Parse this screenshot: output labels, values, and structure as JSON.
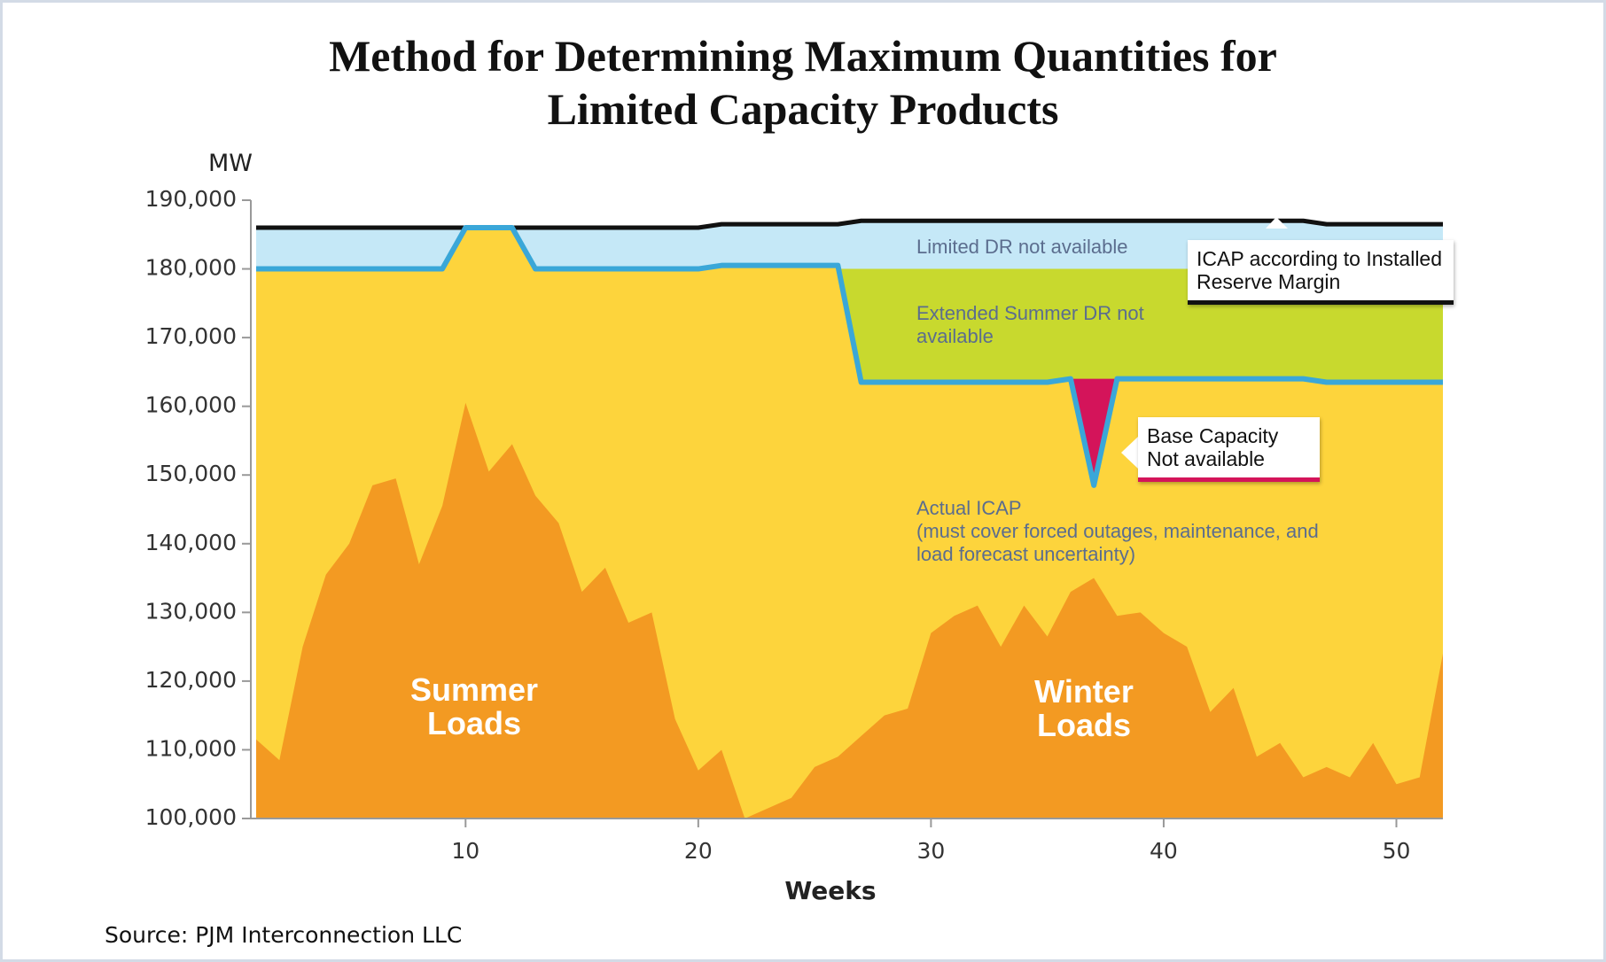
{
  "chart_data": {
    "type": "area",
    "title": "Method for Determining Maximum Quantities for Limited Capacity Products",
    "y_label": "MW",
    "x_label": "Weeks",
    "source": "Source: PJM Interconnection LLC",
    "x": [
      1,
      2,
      3,
      4,
      5,
      6,
      7,
      8,
      9,
      10,
      11,
      12,
      13,
      14,
      15,
      16,
      17,
      18,
      19,
      20,
      21,
      22,
      23,
      24,
      25,
      26,
      27,
      28,
      29,
      30,
      31,
      32,
      33,
      34,
      35,
      36,
      37,
      38,
      39,
      40,
      41,
      42,
      43,
      44,
      45,
      46,
      47,
      48,
      49,
      50,
      51,
      52
    ],
    "xlim": [
      1,
      52
    ],
    "xticks": [
      10,
      20,
      30,
      40,
      50
    ],
    "ylim": [
      100000,
      190000
    ],
    "yticks": [
      {
        "value": 100000,
        "label": "100,000"
      },
      {
        "value": 110000,
        "label": "110,000"
      },
      {
        "value": 120000,
        "label": "120,000"
      },
      {
        "value": 130000,
        "label": "130,000"
      },
      {
        "value": 140000,
        "label": "140,000"
      },
      {
        "value": 150000,
        "label": "150,000"
      },
      {
        "value": 160000,
        "label": "160,000"
      },
      {
        "value": 170000,
        "label": "170,000"
      },
      {
        "value": 180000,
        "label": "180,000"
      },
      {
        "value": 190000,
        "label": "190,000"
      }
    ],
    "series": [
      {
        "name": "ICAP according to Installed Reserve Margin",
        "color": "#c5e8f7",
        "line_color": "#111111",
        "values": [
          186000,
          186000,
          186000,
          186000,
          186000,
          186000,
          186000,
          186000,
          186000,
          186000,
          186000,
          186000,
          186000,
          186000,
          186000,
          186000,
          186000,
          186000,
          186000,
          186000,
          186500,
          186500,
          186500,
          186500,
          186500,
          186500,
          187000,
          187000,
          187000,
          187000,
          187000,
          187000,
          187000,
          187000,
          187000,
          187000,
          187000,
          187000,
          187000,
          187000,
          187000,
          187000,
          187000,
          187000,
          187000,
          187000,
          186500,
          186500,
          186500,
          186500,
          186500,
          186500
        ]
      },
      {
        "name": "Extended Summer DR not available",
        "color": "#c8d92e",
        "values": [
          null,
          null,
          null,
          null,
          null,
          null,
          null,
          null,
          null,
          null,
          null,
          null,
          null,
          null,
          null,
          null,
          null,
          null,
          null,
          null,
          null,
          null,
          null,
          null,
          null,
          180000,
          180000,
          180000,
          180000,
          180000,
          180000,
          180000,
          180000,
          180000,
          180000,
          180000,
          180000,
          180000,
          180000,
          180000,
          180000,
          180000,
          180000,
          180000,
          180000,
          180000,
          180000,
          180000,
          180000,
          180000,
          180000,
          180000
        ]
      },
      {
        "name": "Base Capacity Not available",
        "color": "#d4145a",
        "values": [
          null,
          null,
          null,
          null,
          null,
          null,
          null,
          null,
          null,
          null,
          null,
          null,
          null,
          null,
          null,
          null,
          null,
          null,
          null,
          null,
          null,
          null,
          null,
          null,
          null,
          null,
          null,
          null,
          null,
          null,
          null,
          null,
          null,
          null,
          null,
          164000,
          164000,
          164000,
          null,
          null,
          null,
          null,
          null,
          null,
          null,
          null,
          null,
          null,
          null,
          null,
          null,
          null
        ]
      },
      {
        "name": "Actual ICAP",
        "color": "#fdd43c",
        "line_color": "#3aa7d8",
        "values": [
          180000,
          180000,
          180000,
          180000,
          180000,
          180000,
          180000,
          180000,
          180000,
          186000,
          186000,
          186000,
          180000,
          180000,
          180000,
          180000,
          180000,
          180000,
          180000,
          180000,
          180500,
          180500,
          180500,
          180500,
          180500,
          180500,
          163500,
          163500,
          163500,
          163500,
          163500,
          163500,
          163500,
          163500,
          163500,
          164000,
          148500,
          164000,
          164000,
          164000,
          164000,
          164000,
          164000,
          164000,
          164000,
          164000,
          163500,
          163500,
          163500,
          163500,
          163500,
          163500
        ]
      },
      {
        "color": "#f39a22",
        "values": [
          111500,
          108500,
          125000,
          135500,
          140000,
          148500,
          149500,
          137000,
          145500,
          160500,
          150500,
          154500,
          147000,
          143000,
          133000,
          136500,
          128500,
          130000,
          114500,
          107000,
          110000,
          100000,
          101500,
          103000,
          107500,
          109000,
          112000,
          115000,
          116000,
          127000,
          129500,
          131000,
          125000,
          131000,
          126500,
          133000,
          135000,
          129500,
          130000,
          127000,
          125000,
          115500,
          119000,
          109000,
          111000,
          106000,
          107500,
          106000,
          111000,
          105000,
          106000,
          124000
        ]
      }
    ],
    "annotations": [
      "Limited DR not available",
      "(must cover forced outages, maintenance, and load forecast uncertainty)",
      "Summer Loads",
      "Winter Loads"
    ]
  }
}
